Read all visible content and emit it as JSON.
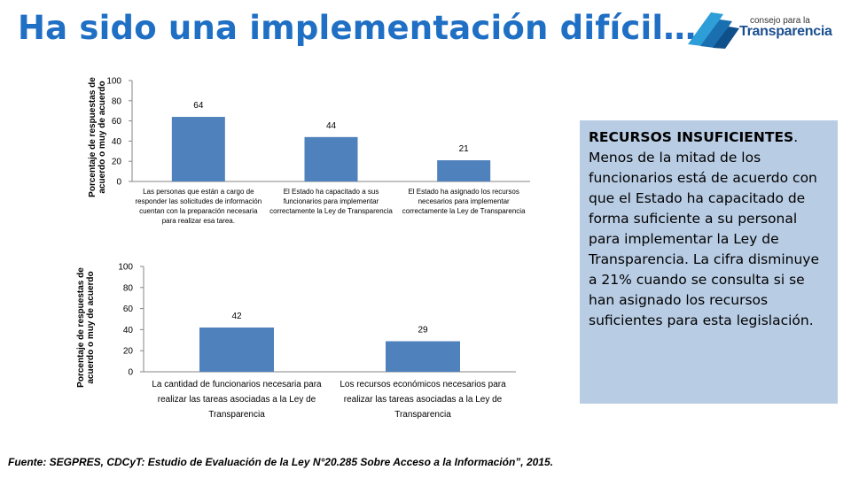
{
  "header": {
    "title": "Ha sido una implementación difícil…",
    "logo_line1": "consejo para la",
    "logo_line2": "Transparencia"
  },
  "callout": {
    "heading": "RECURSOS INSUFICIENTES",
    "body": "Menos de la mitad de los funcionarios está de acuerdo con que el Estado ha capacitado de forma suficiente a su personal para implementar la Ley de Transparencia. La cifra disminuye a 21% cuando se consulta si se han asignado los recursos suficientes para esta legislación."
  },
  "footer": {
    "source": "Fuente: SEGPRES, CDCyT: Estudio de Evaluación de la Ley N°20.285  Sobre Acceso a la Información”, 2015."
  },
  "colors": {
    "bar": "#4f81bd",
    "title": "#1f6fc5",
    "callout_bg": "#b8cce4"
  },
  "chart_data": [
    {
      "type": "bar",
      "ylabel": "Porcentaje de respuestas de acuerdo o muy de acuerdo",
      "ylim": [
        0,
        100
      ],
      "yticks": [
        0,
        20,
        40,
        60,
        80,
        100
      ],
      "grid": false,
      "categories": [
        "Las personas que están a cargo de responder las solicitudes de información cuentan con la preparación necesaria para realizar esa tarea.",
        "El Estado ha capacitado a sus funcionarios  para implementar correctamente la Ley de Transparencia",
        "El Estado ha asignado los recursos necesarios para implementar correctamente la Ley de Transparencia"
      ],
      "values": [
        64,
        44,
        21
      ]
    },
    {
      "type": "bar",
      "ylabel": "Porcentaje de respuestas de acuerdo o muy de acuerdo",
      "ylim": [
        0,
        100
      ],
      "yticks": [
        0,
        20,
        40,
        60,
        80,
        100
      ],
      "grid": false,
      "categories": [
        "La cantidad de funcionarios necesaria para realizar las tareas asociadas a la Ley de Transparencia",
        "Los recursos económicos necesarios para realizar las tareas asociadas a la Ley de Transparencia"
      ],
      "values": [
        42,
        29
      ]
    }
  ]
}
